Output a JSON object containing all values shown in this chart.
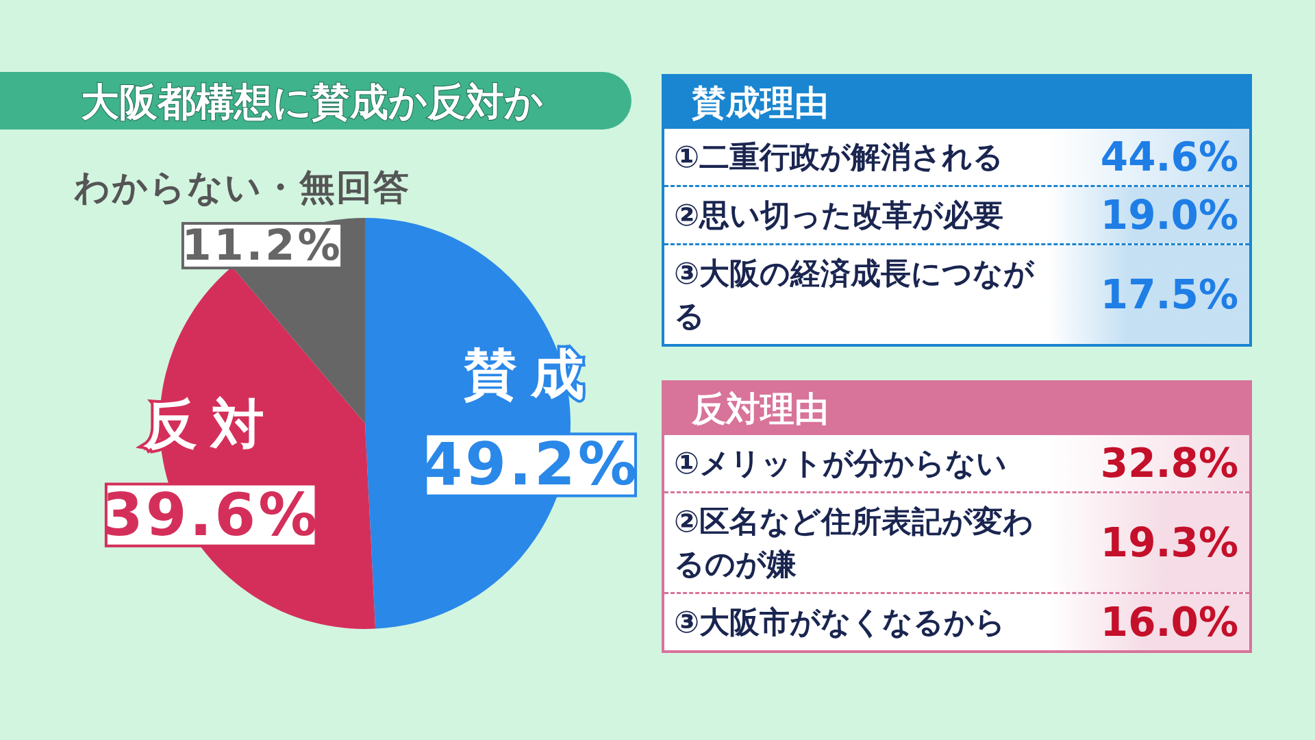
{
  "chart_data": [
    {
      "type": "pie",
      "title": "大阪都構想に賛成か反対か",
      "categories": [
        "賛成",
        "反対",
        "わからない・無回答"
      ],
      "values": [
        49.2,
        39.6,
        11.2
      ],
      "colors": [
        "#2a88e8",
        "#d42f5a",
        "#666666"
      ],
      "value_labels": [
        "49.2%",
        "39.6%",
        "11.2%"
      ]
    },
    {
      "type": "other",
      "title": "賛成理由",
      "categories": [
        "①二重行政が解消される",
        "②思い切った改革が必要",
        "③大阪の経済成長につながる"
      ],
      "series": [
        {
          "color": "#1a85d0",
          "values": [
            44.6,
            19.0,
            17.5
          ],
          "value_labels": [
            "44.6%",
            "19.0%",
            "17.5%"
          ]
        }
      ]
    },
    {
      "type": "other",
      "title": "反対理由",
      "categories": [
        "①メリットが分からない",
        "②区名など住所表記が変わるのが嫌",
        "③大阪市がなくなるから"
      ],
      "series": [
        {
          "color": "#d8739a",
          "values": [
            32.8,
            19.3,
            16.0
          ],
          "value_labels": [
            "32.8%",
            "19.3%",
            "16.0%"
          ]
        }
      ]
    }
  ]
}
